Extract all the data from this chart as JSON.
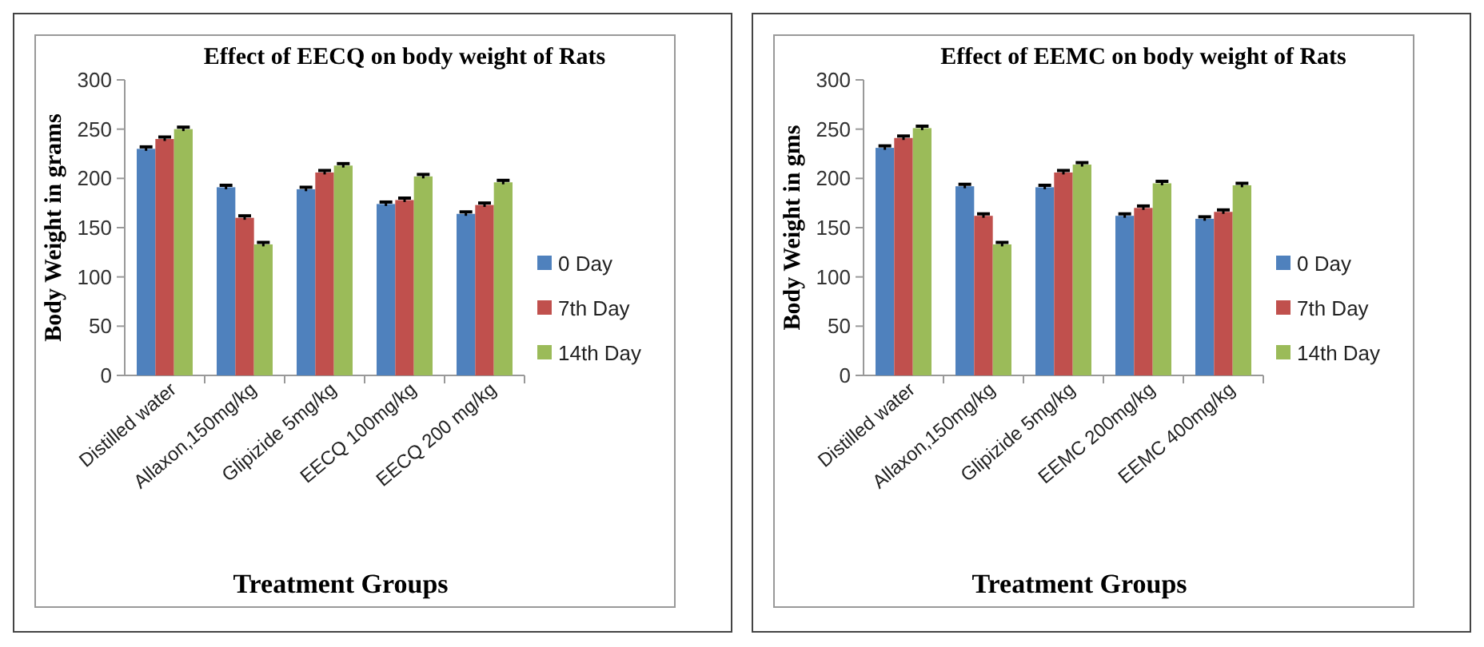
{
  "chart_data": [
    {
      "type": "bar",
      "title": "Effect of EECQ on body weight of Rats",
      "xlabel": "Treatment Groups",
      "ylabel": "Body Weight in grams",
      "categories": [
        "Distilled water",
        "Allaxon,150mg/kg",
        "Glipizide 5mg/kg",
        "EECQ 100mg/kg",
        "EECQ  200 mg/kg"
      ],
      "series": [
        {
          "name": "0 Day",
          "color": "#4f81bd",
          "values": [
            230,
            191,
            189,
            174,
            164
          ],
          "errors": [
            2,
            2,
            2,
            2,
            2
          ]
        },
        {
          "name": "7th Day",
          "color": "#c0504d",
          "values": [
            240,
            160,
            206,
            178,
            173
          ],
          "errors": [
            2,
            2,
            2,
            2,
            2
          ]
        },
        {
          "name": "14th Day",
          "color": "#9bbb59",
          "values": [
            250,
            133,
            213,
            202,
            196
          ],
          "errors": [
            2,
            2,
            2,
            2,
            2
          ]
        }
      ],
      "ylim": [
        0,
        300
      ],
      "yticks": [
        0,
        50,
        100,
        150,
        200,
        250,
        300
      ],
      "grid": false,
      "legend": "right"
    },
    {
      "type": "bar",
      "title": "Effect of EEMC on body weight of Rats",
      "xlabel": "Treatment Groups",
      "ylabel": "Body Weight in gms",
      "categories": [
        "Distilled water",
        "Allaxon,150mg/kg",
        "Glipizide 5mg/kg",
        "EEMC 200mg/kg",
        "EEMC 400mg/kg"
      ],
      "series": [
        {
          "name": "0 Day",
          "color": "#4f81bd",
          "values": [
            231,
            192,
            191,
            162,
            159
          ],
          "errors": [
            2,
            2,
            2,
            2,
            2
          ]
        },
        {
          "name": "7th Day",
          "color": "#c0504d",
          "values": [
            241,
            162,
            206,
            170,
            166
          ],
          "errors": [
            2,
            2,
            2,
            2,
            2
          ]
        },
        {
          "name": "14th Day",
          "color": "#9bbb59",
          "values": [
            251,
            133,
            214,
            195,
            193
          ],
          "errors": [
            2,
            2,
            2,
            2,
            2
          ]
        }
      ],
      "ylim": [
        0,
        300
      ],
      "yticks": [
        0,
        50,
        100,
        150,
        200,
        250,
        300
      ],
      "grid": false,
      "legend": "right"
    }
  ]
}
